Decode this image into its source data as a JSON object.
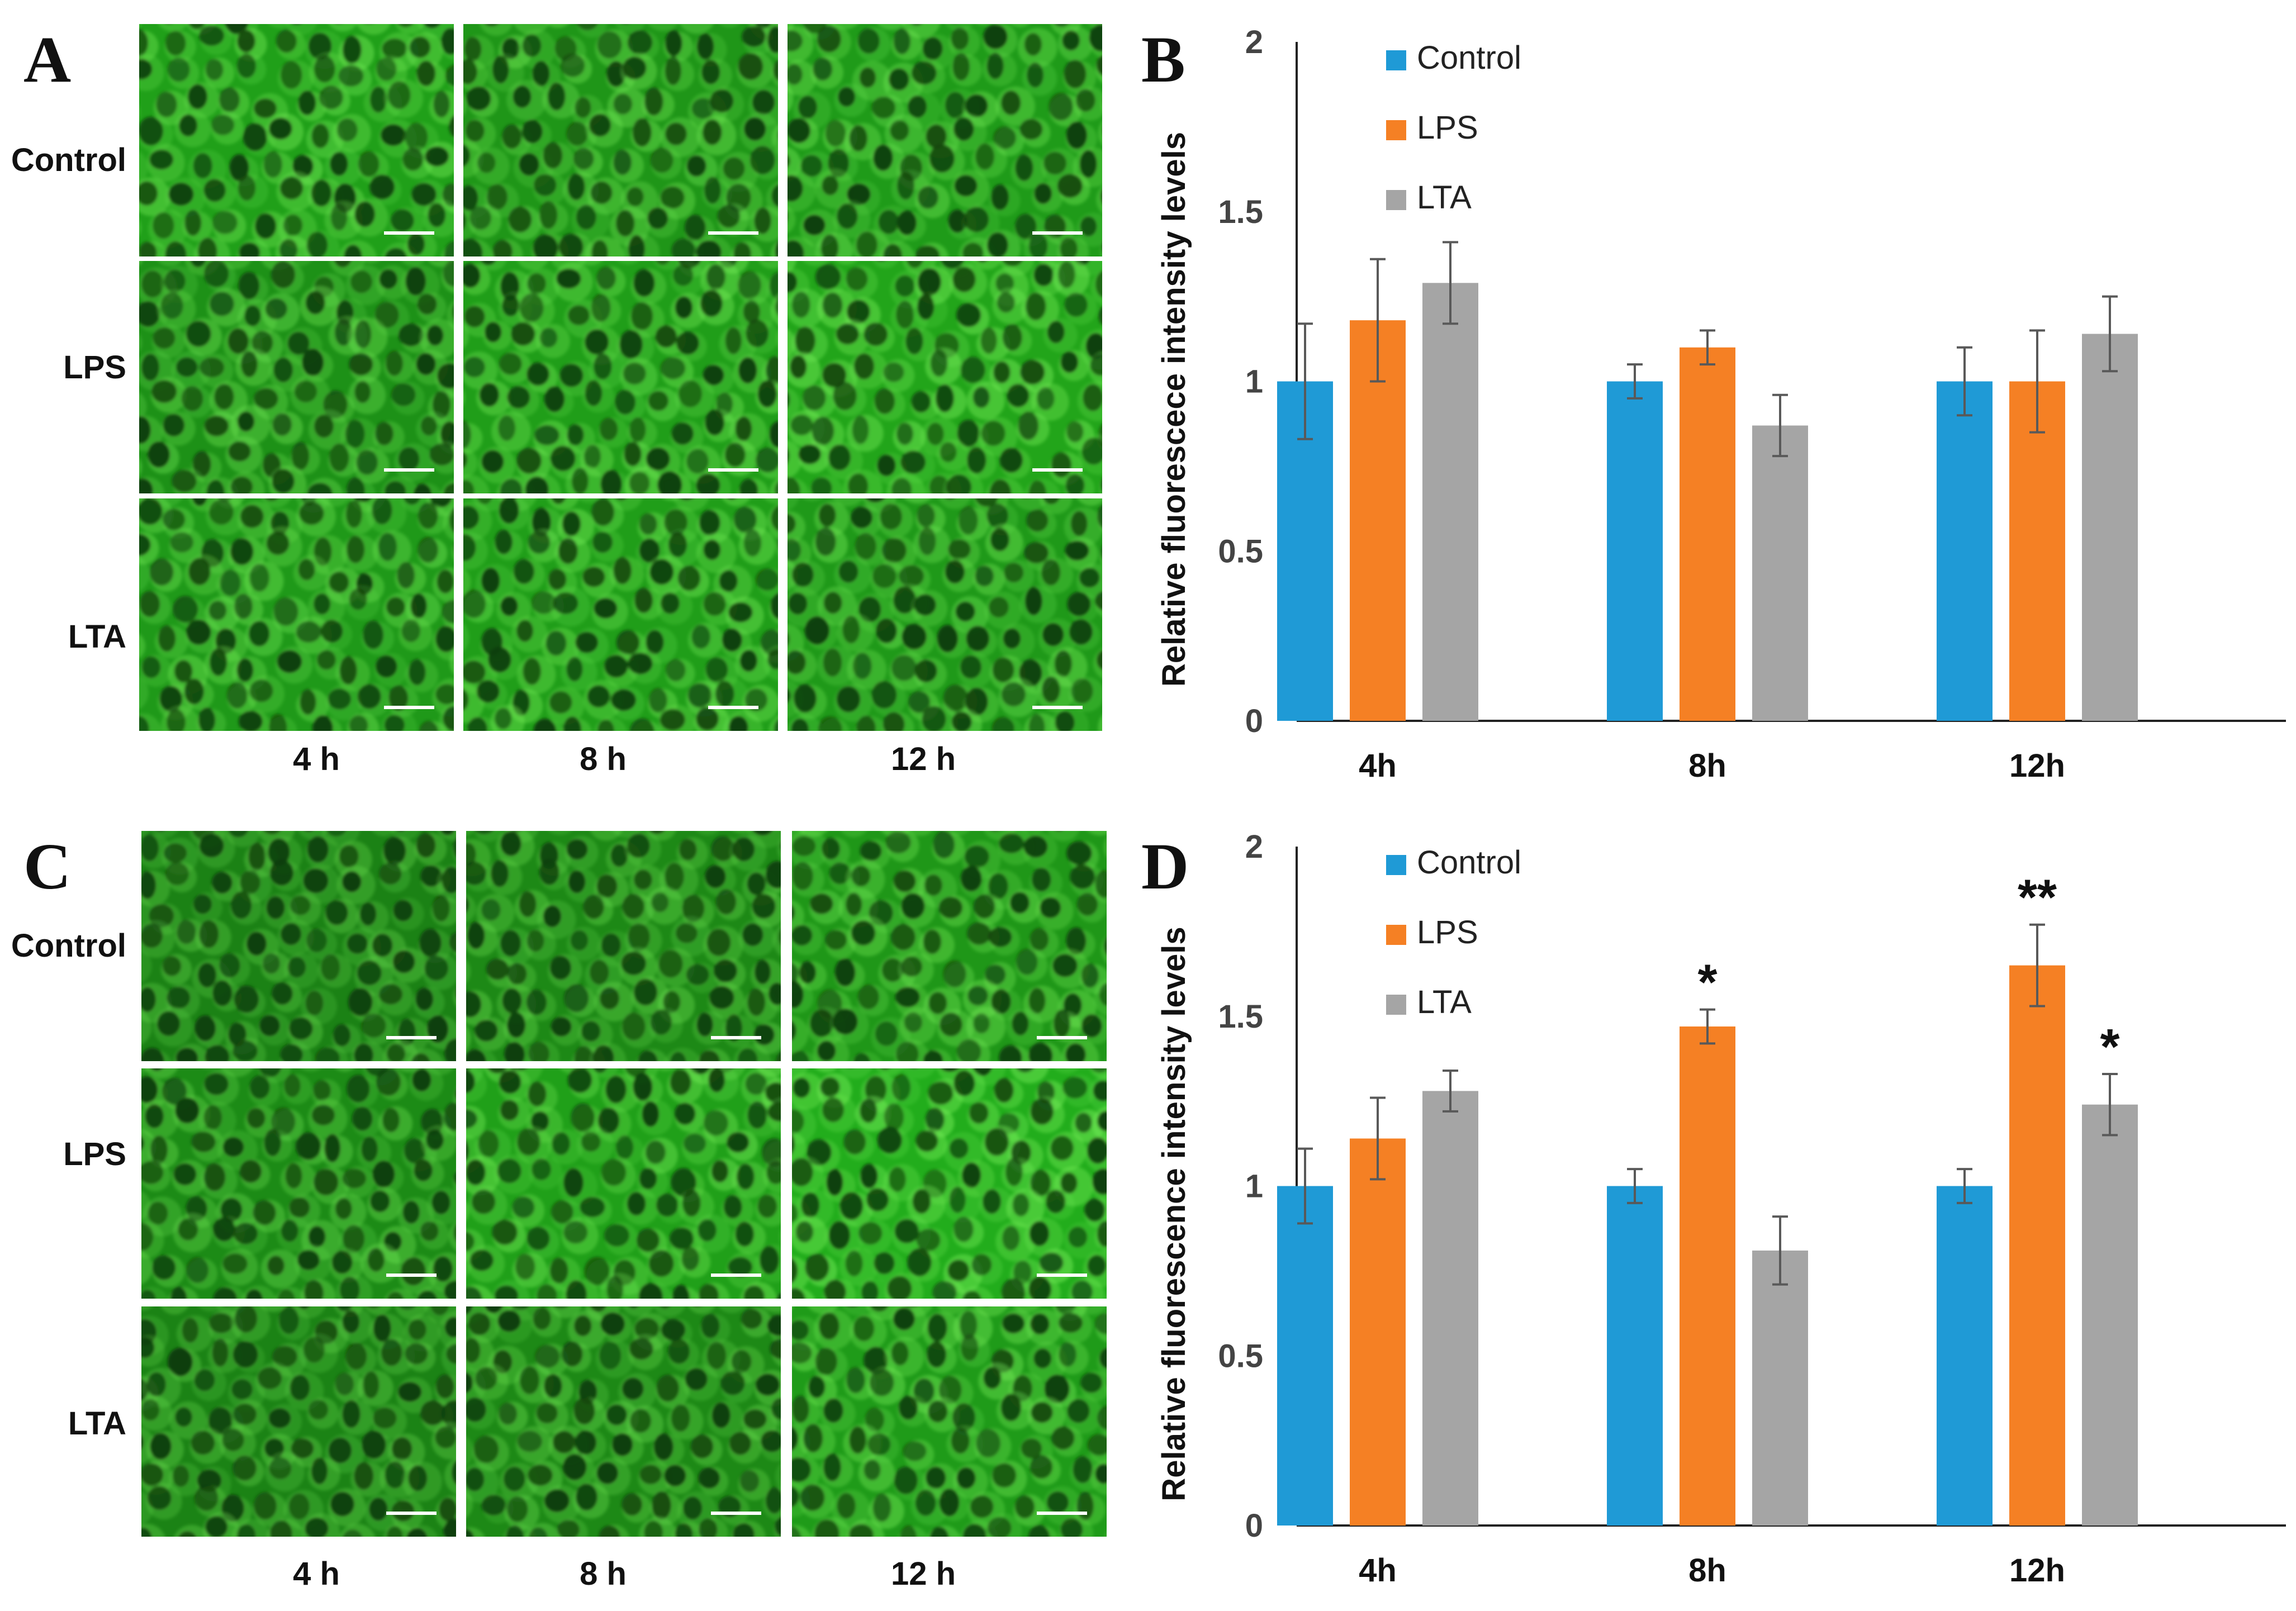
{
  "panels": {
    "A": "A",
    "B": "B",
    "C": "C",
    "D": "D"
  },
  "micrograph_rows": [
    "Control",
    "LPS",
    "LTA"
  ],
  "micrograph_cols": [
    "4 h",
    "8 h",
    "12 h"
  ],
  "micrograph_brightness": {
    "A": [
      [
        0.78,
        0.66,
        0.72
      ],
      [
        0.6,
        0.74,
        0.84
      ],
      [
        0.7,
        0.76,
        0.7
      ]
    ],
    "C": [
      [
        0.42,
        0.5,
        0.68
      ],
      [
        0.52,
        0.78,
        0.92
      ],
      [
        0.44,
        0.5,
        0.72
      ]
    ]
  },
  "colors": {
    "control": "#1f9ad6",
    "lps": "#f58024",
    "lta": "#a5a5a5",
    "micrograph_cells": "#27c21f",
    "errorbar": "#595959"
  },
  "chart_data": [
    {
      "type": "bar",
      "panel": "B",
      "categories": [
        "4h",
        "8h",
        "12h"
      ],
      "series": [
        {
          "name": "Control",
          "values": [
            1.0,
            1.0,
            1.0
          ],
          "errors": [
            0.17,
            0.05,
            0.1
          ]
        },
        {
          "name": "LPS",
          "values": [
            1.18,
            1.1,
            1.0
          ],
          "errors": [
            0.18,
            0.05,
            0.15
          ]
        },
        {
          "name": "LTA",
          "values": [
            1.29,
            0.87,
            1.14
          ],
          "errors": [
            0.12,
            0.09,
            0.11
          ]
        }
      ],
      "significance": [
        [
          "",
          "",
          ""
        ],
        [
          "",
          "",
          ""
        ],
        [
          "",
          "",
          ""
        ]
      ],
      "ylabel": "Relative fluorescece intensity levels",
      "ylim": [
        0,
        2
      ],
      "yticks": [
        "0",
        "0.5",
        "1",
        "1.5",
        "2"
      ],
      "legend_position": "top-left",
      "grid": false
    },
    {
      "type": "bar",
      "panel": "D",
      "categories": [
        "4h",
        "8h",
        "12h"
      ],
      "series": [
        {
          "name": "Control",
          "values": [
            1.0,
            1.0,
            1.0
          ],
          "errors": [
            0.11,
            0.05,
            0.05
          ]
        },
        {
          "name": "LPS",
          "values": [
            1.14,
            1.47,
            1.65
          ],
          "errors": [
            0.12,
            0.05,
            0.12
          ]
        },
        {
          "name": "LTA",
          "values": [
            1.28,
            0.81,
            1.24
          ],
          "errors": [
            0.06,
            0.1,
            0.09
          ]
        }
      ],
      "significance": [
        [
          "",
          "",
          ""
        ],
        [
          "",
          "*",
          "**"
        ],
        [
          "",
          "",
          "*"
        ]
      ],
      "ylabel": "Relative fluorescence intensity levels",
      "ylim": [
        0,
        2
      ],
      "yticks": [
        "0",
        "0.5",
        "1",
        "1.5",
        "2"
      ],
      "legend_position": "top-left",
      "grid": false
    }
  ]
}
